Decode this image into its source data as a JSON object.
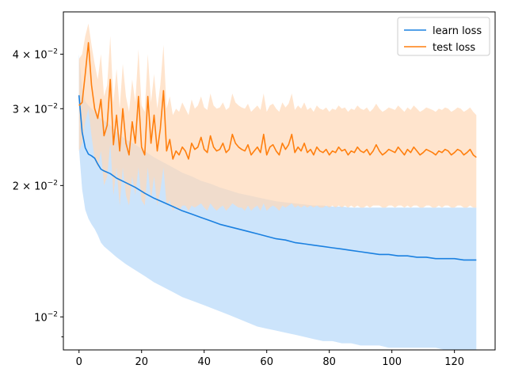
{
  "chart_data": {
    "type": "line",
    "title": "",
    "xlabel": "",
    "ylabel": "",
    "yscale": "log",
    "xlim": [
      -5,
      133
    ],
    "ylim": [
      0.0084,
      0.05
    ],
    "grid": false,
    "legend_position": "top-right",
    "x_ticks": [
      {
        "value": 0,
        "label": "0"
      },
      {
        "value": 20,
        "label": "20"
      },
      {
        "value": 40,
        "label": "40"
      },
      {
        "value": 60,
        "label": "60"
      },
      {
        "value": 80,
        "label": "80"
      },
      {
        "value": 100,
        "label": "100"
      },
      {
        "value": 120,
        "label": "120"
      }
    ],
    "y_ticks": [
      {
        "value": 0.01,
        "base": "10",
        "exp": "−2",
        "prefix": ""
      },
      {
        "value": 0.02,
        "base": "10",
        "exp": "−2",
        "prefix": "2 × "
      },
      {
        "value": 0.03,
        "base": "10",
        "exp": "−2",
        "prefix": "3 × "
      },
      {
        "value": 0.04,
        "base": "10",
        "exp": "−2",
        "prefix": "4 × "
      }
    ],
    "y_minor_ticks": [
      0.009
    ],
    "series": [
      {
        "name": "learn loss",
        "color": "#1a80e0",
        "band_color": "#cce4fb",
        "x": [
          0,
          1,
          2,
          3,
          4,
          5,
          6,
          7,
          8,
          10,
          12,
          15,
          18,
          21,
          24,
          27,
          30,
          33,
          36,
          39,
          42,
          45,
          48,
          51,
          54,
          57,
          60,
          63,
          66,
          69,
          72,
          75,
          78,
          81,
          84,
          87,
          90,
          93,
          96,
          99,
          102,
          105,
          108,
          111,
          114,
          117,
          120,
          123,
          127
        ],
        "y": [
          0.0322,
          0.0265,
          0.0244,
          0.0236,
          0.0234,
          0.0231,
          0.0224,
          0.0218,
          0.0216,
          0.0213,
          0.0208,
          0.0203,
          0.0198,
          0.0192,
          0.0187,
          0.0183,
          0.0179,
          0.0175,
          0.0172,
          0.0169,
          0.0166,
          0.0163,
          0.0161,
          0.0159,
          0.0157,
          0.0155,
          0.0153,
          0.0151,
          0.015,
          0.0148,
          0.0147,
          0.0146,
          0.0145,
          0.0144,
          0.0143,
          0.0142,
          0.0141,
          0.014,
          0.0139,
          0.0139,
          0.0138,
          0.0138,
          0.0137,
          0.0137,
          0.0136,
          0.0136,
          0.0136,
          0.0135,
          0.0135
        ],
        "lower": [
          0.0243,
          0.0196,
          0.0176,
          0.0168,
          0.0163,
          0.0159,
          0.0154,
          0.0148,
          0.0145,
          0.0141,
          0.0137,
          0.0132,
          0.0128,
          0.0124,
          0.012,
          0.0117,
          0.0114,
          0.0111,
          0.0109,
          0.0107,
          0.0105,
          0.0103,
          0.0101,
          0.0099,
          0.0097,
          0.0095,
          0.0094,
          0.0093,
          0.0092,
          0.0091,
          0.009,
          0.0089,
          0.0088,
          0.0088,
          0.0087,
          0.0087,
          0.0086,
          0.0086,
          0.0086,
          0.0085,
          0.0085,
          0.0085,
          0.0085,
          0.0085,
          0.0085,
          0.0084,
          0.0084,
          0.0084,
          0.0084
        ],
        "upper": [
          0.04,
          0.0334,
          0.0312,
          0.0305,
          0.03,
          0.0296,
          0.0288,
          0.0285,
          0.0282,
          0.0275,
          0.0265,
          0.0255,
          0.0248,
          0.024,
          0.0232,
          0.0226,
          0.022,
          0.0214,
          0.021,
          0.0205,
          0.0202,
          0.0198,
          0.0195,
          0.0192,
          0.019,
          0.0188,
          0.0186,
          0.0184,
          0.0183,
          0.0182,
          0.0181,
          0.018,
          0.018,
          0.0179,
          0.0179,
          0.0178,
          0.0178,
          0.0178,
          0.0178,
          0.0178,
          0.0178,
          0.0178,
          0.0178,
          0.0178,
          0.0178,
          0.0178,
          0.0178,
          0.0178,
          0.0178
        ]
      },
      {
        "name": "test loss",
        "color": "#ff7f0e",
        "band_color": "#ffd9b8",
        "x": [
          0,
          1,
          2,
          3,
          4,
          5,
          6,
          7,
          8,
          9,
          10,
          11,
          12,
          13,
          14,
          15,
          16,
          17,
          18,
          19,
          20,
          21,
          22,
          23,
          24,
          25,
          26,
          27,
          28,
          29,
          30,
          31,
          32,
          33,
          34,
          35,
          36,
          37,
          38,
          39,
          40,
          41,
          42,
          43,
          44,
          45,
          46,
          47,
          48,
          49,
          50,
          51,
          52,
          53,
          54,
          55,
          56,
          57,
          58,
          59,
          60,
          61,
          62,
          63,
          64,
          65,
          66,
          67,
          68,
          69,
          70,
          71,
          72,
          73,
          74,
          75,
          76,
          77,
          78,
          79,
          80,
          81,
          82,
          83,
          84,
          85,
          86,
          87,
          88,
          89,
          90,
          91,
          92,
          93,
          94,
          95,
          96,
          97,
          98,
          99,
          100,
          101,
          102,
          103,
          104,
          105,
          106,
          107,
          108,
          109,
          110,
          111,
          112,
          113,
          114,
          115,
          116,
          117,
          118,
          119,
          120,
          121,
          122,
          123,
          124,
          125,
          126,
          127
        ],
        "y": [
          0.0305,
          0.031,
          0.036,
          0.0425,
          0.034,
          0.03,
          0.0285,
          0.0315,
          0.026,
          0.0275,
          0.035,
          0.0248,
          0.029,
          0.024,
          0.03,
          0.025,
          0.0235,
          0.028,
          0.025,
          0.032,
          0.0245,
          0.0235,
          0.032,
          0.025,
          0.029,
          0.024,
          0.027,
          0.033,
          0.024,
          0.0255,
          0.023,
          0.024,
          0.0235,
          0.0245,
          0.024,
          0.023,
          0.025,
          0.0242,
          0.0245,
          0.0258,
          0.0242,
          0.0238,
          0.026,
          0.0245,
          0.024,
          0.0242,
          0.025,
          0.0238,
          0.0242,
          0.0262,
          0.025,
          0.0245,
          0.0242,
          0.024,
          0.0248,
          0.0235,
          0.024,
          0.0245,
          0.0238,
          0.0262,
          0.0235,
          0.0245,
          0.0248,
          0.024,
          0.0235,
          0.025,
          0.0242,
          0.0248,
          0.0262,
          0.0238,
          0.0245,
          0.024,
          0.025,
          0.0238,
          0.0242,
          0.0235,
          0.0245,
          0.024,
          0.0238,
          0.0242,
          0.0235,
          0.024,
          0.0238,
          0.0245,
          0.024,
          0.0242,
          0.0235,
          0.024,
          0.0238,
          0.0245,
          0.024,
          0.0238,
          0.0242,
          0.0235,
          0.024,
          0.0248,
          0.024,
          0.0235,
          0.0238,
          0.0242,
          0.024,
          0.0238,
          0.0245,
          0.024,
          0.0235,
          0.0242,
          0.0238,
          0.0245,
          0.024,
          0.0235,
          0.0238,
          0.0242,
          0.024,
          0.0238,
          0.0235,
          0.024,
          0.0238,
          0.0242,
          0.024,
          0.0235,
          0.0238,
          0.0242,
          0.024,
          0.0235,
          0.0238,
          0.0242,
          0.0235,
          0.0232
        ],
        "lower": [
          0.024,
          0.025,
          0.028,
          0.03,
          0.026,
          0.023,
          0.022,
          0.024,
          0.02,
          0.021,
          0.025,
          0.019,
          0.022,
          0.018,
          0.022,
          0.019,
          0.018,
          0.021,
          0.019,
          0.022,
          0.0185,
          0.018,
          0.022,
          0.0185,
          0.021,
          0.018,
          0.0195,
          0.022,
          0.018,
          0.0185,
          0.0175,
          0.018,
          0.0175,
          0.018,
          0.018,
          0.0175,
          0.018,
          0.0178,
          0.018,
          0.0182,
          0.0178,
          0.0175,
          0.0182,
          0.0178,
          0.0175,
          0.0178,
          0.018,
          0.0175,
          0.0178,
          0.0182,
          0.018,
          0.0178,
          0.0178,
          0.0175,
          0.018,
          0.0175,
          0.0178,
          0.018,
          0.0175,
          0.0182,
          0.0175,
          0.0178,
          0.018,
          0.0178,
          0.0175,
          0.018,
          0.0178,
          0.018,
          0.0182,
          0.0178,
          0.018,
          0.0178,
          0.018,
          0.0178,
          0.018,
          0.0178,
          0.018,
          0.0178,
          0.0178,
          0.018,
          0.0178,
          0.018,
          0.0178,
          0.018,
          0.0178,
          0.018,
          0.0178,
          0.018,
          0.0178,
          0.018,
          0.0178,
          0.0178,
          0.018,
          0.0178,
          0.018,
          0.018,
          0.018,
          0.0178,
          0.0178,
          0.018,
          0.018,
          0.0178,
          0.018,
          0.018,
          0.0178,
          0.018,
          0.0178,
          0.018,
          0.018,
          0.0178,
          0.0178,
          0.018,
          0.018,
          0.0178,
          0.0178,
          0.018,
          0.0178,
          0.018,
          0.018,
          0.0178,
          0.0178,
          0.018,
          0.018,
          0.0178,
          0.0178,
          0.018,
          0.0178,
          0.0178
        ],
        "upper": [
          0.039,
          0.04,
          0.044,
          0.047,
          0.042,
          0.038,
          0.035,
          0.04,
          0.032,
          0.034,
          0.044,
          0.031,
          0.037,
          0.03,
          0.038,
          0.032,
          0.0295,
          0.035,
          0.031,
          0.041,
          0.0305,
          0.0295,
          0.04,
          0.031,
          0.036,
          0.03,
          0.034,
          0.042,
          0.03,
          0.032,
          0.029,
          0.03,
          0.0295,
          0.031,
          0.03,
          0.029,
          0.0315,
          0.03,
          0.0305,
          0.032,
          0.0302,
          0.0298,
          0.0325,
          0.0305,
          0.03,
          0.0302,
          0.031,
          0.0298,
          0.0302,
          0.0325,
          0.031,
          0.0305,
          0.0302,
          0.03,
          0.0308,
          0.0295,
          0.03,
          0.0305,
          0.0298,
          0.0325,
          0.0295,
          0.0305,
          0.0308,
          0.03,
          0.0295,
          0.031,
          0.0302,
          0.0308,
          0.0325,
          0.0298,
          0.0305,
          0.03,
          0.031,
          0.0298,
          0.0302,
          0.0295,
          0.0305,
          0.03,
          0.0298,
          0.0302,
          0.0295,
          0.03,
          0.0298,
          0.0305,
          0.03,
          0.0302,
          0.0295,
          0.03,
          0.0298,
          0.0305,
          0.03,
          0.0298,
          0.0302,
          0.0295,
          0.03,
          0.0308,
          0.03,
          0.0295,
          0.0298,
          0.0302,
          0.03,
          0.0298,
          0.0305,
          0.03,
          0.0295,
          0.0302,
          0.0298,
          0.0305,
          0.03,
          0.0295,
          0.0298,
          0.0302,
          0.03,
          0.0298,
          0.0295,
          0.03,
          0.0298,
          0.0302,
          0.03,
          0.0295,
          0.0298,
          0.0302,
          0.03,
          0.0295,
          0.0298,
          0.0302,
          0.0295,
          0.029
        ]
      }
    ]
  }
}
